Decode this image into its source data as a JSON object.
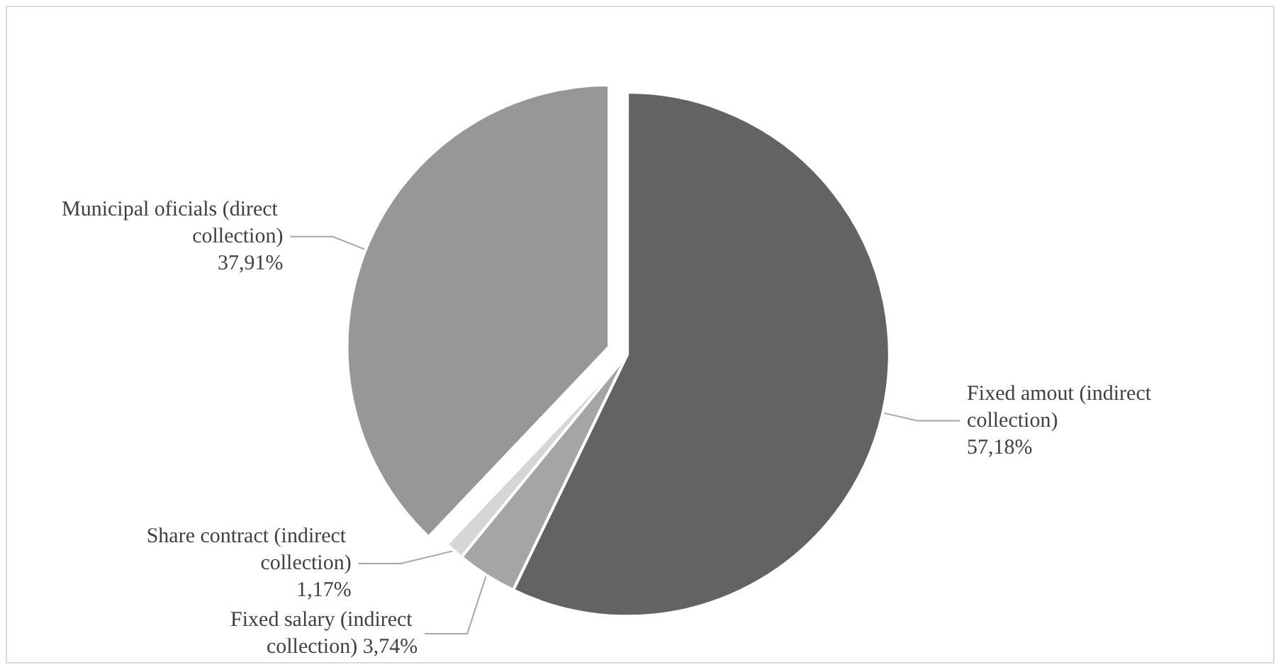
{
  "chart_data": {
    "type": "pie",
    "categories": [
      "Fixed amout (indirect collection)",
      "Fixed salary (indirect collection)",
      "Share contract (indirect collection)",
      "Municipal oficials (direct collection)"
    ],
    "values": [
      57.18,
      3.74,
      1.17,
      37.91
    ],
    "value_labels": [
      "57,18%",
      "3,74%",
      "1,17%",
      "37,91%"
    ],
    "colors": [
      "#636363",
      "#a5a5a5",
      "#d6d6d6",
      "#979797"
    ],
    "legend": false
  }
}
